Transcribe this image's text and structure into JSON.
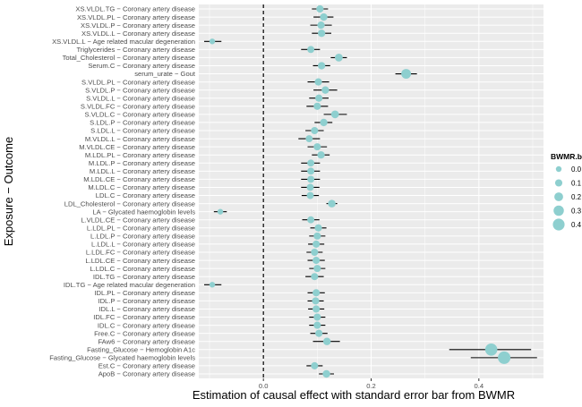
{
  "chart_data": {
    "type": "scatter",
    "title": "",
    "xlabel": "Estimation of causal effect with standard error bar from BWMR",
    "ylabel": "Exposure − Outcome",
    "xlim": [
      -0.12,
      0.52
    ],
    "x_ticks": [
      0.0,
      0.2,
      0.4
    ],
    "x_tick_labels": [
      "0.0",
      "0.2",
      "0.4"
    ],
    "reference_line_x": 0,
    "grid": true,
    "legend": {
      "title": "BWMR.beta",
      "position": "right",
      "entries": [
        {
          "label": "0.0",
          "value": 0.0
        },
        {
          "label": "0.1",
          "value": 0.1
        },
        {
          "label": "0.2",
          "value": 0.2
        },
        {
          "label": "0.3",
          "value": 0.3
        },
        {
          "label": "0.4",
          "value": 0.4
        }
      ]
    },
    "colors": {
      "point": "#8ecfcf",
      "errorbar": "#000000",
      "panel": "#ebebeb",
      "grid": "#ffffff"
    },
    "points": [
      {
        "label": "XS.VLDL.TG  −  Coronary artery disease",
        "beta": 0.105,
        "lo": 0.09,
        "hi": 0.12
      },
      {
        "label": "XS.VLDL.PL  −  Coronary artery disease",
        "beta": 0.112,
        "lo": 0.093,
        "hi": 0.13
      },
      {
        "label": "XS.VLDL.P  −  Coronary artery disease",
        "beta": 0.107,
        "lo": 0.087,
        "hi": 0.127
      },
      {
        "label": "XS.VLDL.L  −  Coronary artery disease",
        "beta": 0.108,
        "lo": 0.09,
        "hi": 0.126
      },
      {
        "label": "XS.VLDL.L  −  Age related macular degeneration",
        "beta": -0.095,
        "lo": -0.11,
        "hi": -0.078
      },
      {
        "label": "Triglycerides  −  Coronary artery disease",
        "beta": 0.088,
        "lo": 0.07,
        "hi": 0.105
      },
      {
        "label": "Total_Cholesterol  −  Coronary artery disease",
        "beta": 0.14,
        "lo": 0.125,
        "hi": 0.155
      },
      {
        "label": "Serum.C  −  Coronary artery disease",
        "beta": 0.108,
        "lo": 0.092,
        "hi": 0.124
      },
      {
        "label": "serum_urate  −  Gout",
        "beta": 0.265,
        "lo": 0.245,
        "hi": 0.285
      },
      {
        "label": "S.VLDL.PL  −  Coronary artery disease",
        "beta": 0.102,
        "lo": 0.082,
        "hi": 0.122
      },
      {
        "label": "S.VLDL.P  −  Coronary artery disease",
        "beta": 0.115,
        "lo": 0.093,
        "hi": 0.137
      },
      {
        "label": "S.VLDL.L  −  Coronary artery disease",
        "beta": 0.103,
        "lo": 0.085,
        "hi": 0.121
      },
      {
        "label": "S.VLDL.FC  −  Coronary artery disease",
        "beta": 0.1,
        "lo": 0.08,
        "hi": 0.12
      },
      {
        "label": "S.VLDL.C  −  Coronary artery disease",
        "beta": 0.133,
        "lo": 0.112,
        "hi": 0.155
      },
      {
        "label": "S.LDL.P  −  Coronary artery disease",
        "beta": 0.112,
        "lo": 0.095,
        "hi": 0.128
      },
      {
        "label": "S.LDL.L  −  Coronary artery disease",
        "beta": 0.095,
        "lo": 0.078,
        "hi": 0.112
      },
      {
        "label": "M.VLDL.L  −  Coronary artery disease",
        "beta": 0.085,
        "lo": 0.065,
        "hi": 0.105
      },
      {
        "label": "M.VLDL.CE  −  Coronary artery disease",
        "beta": 0.1,
        "lo": 0.082,
        "hi": 0.118
      },
      {
        "label": "M.LDL.PL  −  Coronary artery disease",
        "beta": 0.107,
        "lo": 0.09,
        "hi": 0.123
      },
      {
        "label": "M.LDL.P  −  Coronary artery disease",
        "beta": 0.088,
        "lo": 0.07,
        "hi": 0.105
      },
      {
        "label": "M.LDL.L  −  Coronary artery disease",
        "beta": 0.088,
        "lo": 0.07,
        "hi": 0.105
      },
      {
        "label": "M.LDL.CE  −  Coronary artery disease",
        "beta": 0.088,
        "lo": 0.07,
        "hi": 0.105
      },
      {
        "label": "M.LDL.C  −  Coronary artery disease",
        "beta": 0.087,
        "lo": 0.07,
        "hi": 0.104
      },
      {
        "label": "LDL.C  −  Coronary artery disease",
        "beta": 0.087,
        "lo": 0.071,
        "hi": 0.103
      },
      {
        "label": "LDL_Cholesterol  −  Coronary artery disease",
        "beta": 0.127,
        "lo": 0.117,
        "hi": 0.137
      },
      {
        "label": "LA  −  Glycated haemoglobin levels",
        "beta": -0.08,
        "lo": -0.092,
        "hi": -0.068
      },
      {
        "label": "L.VLDL.CE  −  Coronary artery disease",
        "beta": 0.088,
        "lo": 0.072,
        "hi": 0.104
      },
      {
        "label": "L.LDL.PL  −  Coronary artery disease",
        "beta": 0.102,
        "lo": 0.087,
        "hi": 0.117
      },
      {
        "label": "L.LDL.P  −  Coronary artery disease",
        "beta": 0.1,
        "lo": 0.085,
        "hi": 0.115
      },
      {
        "label": "L.LDL.L  −  Coronary artery disease",
        "beta": 0.098,
        "lo": 0.083,
        "hi": 0.113
      },
      {
        "label": "L.LDL.FC  −  Coronary artery disease",
        "beta": 0.095,
        "lo": 0.08,
        "hi": 0.11
      },
      {
        "label": "L.LDL.CE  −  Coronary artery disease",
        "beta": 0.098,
        "lo": 0.082,
        "hi": 0.114
      },
      {
        "label": "L.LDL.C  −  Coronary artery disease",
        "beta": 0.1,
        "lo": 0.085,
        "hi": 0.115
      },
      {
        "label": "IDL.TG  −  Coronary artery disease",
        "beta": 0.095,
        "lo": 0.078,
        "hi": 0.112
      },
      {
        "label": "IDL.TG  −  Age related macular degeneration",
        "beta": -0.095,
        "lo": -0.11,
        "hi": -0.078
      },
      {
        "label": "IDL.PL  −  Coronary artery disease",
        "beta": 0.098,
        "lo": 0.082,
        "hi": 0.114
      },
      {
        "label": "IDL.P  −  Coronary artery disease",
        "beta": 0.097,
        "lo": 0.082,
        "hi": 0.112
      },
      {
        "label": "IDL.L  −  Coronary artery disease",
        "beta": 0.098,
        "lo": 0.083,
        "hi": 0.113
      },
      {
        "label": "IDL.FC  −  Coronary artery disease",
        "beta": 0.1,
        "lo": 0.085,
        "hi": 0.115
      },
      {
        "label": "IDL.C  −  Coronary artery disease",
        "beta": 0.1,
        "lo": 0.085,
        "hi": 0.115
      },
      {
        "label": "Free.C  −  Coronary artery disease",
        "beta": 0.103,
        "lo": 0.087,
        "hi": 0.119
      },
      {
        "label": "FAw6  −  Coronary artery disease",
        "beta": 0.118,
        "lo": 0.092,
        "hi": 0.142
      },
      {
        "label": "Fasting_Glucose  −  Hemoglobin A1c",
        "beta": 0.423,
        "lo": 0.345,
        "hi": 0.497
      },
      {
        "label": "Fasting_Glucose  −  Glycated haemoglobin levels",
        "beta": 0.447,
        "lo": 0.385,
        "hi": 0.508
      },
      {
        "label": "Est.C  −  Coronary artery disease",
        "beta": 0.095,
        "lo": 0.08,
        "hi": 0.11
      },
      {
        "label": "ApoB  −  Coronary artery disease",
        "beta": 0.117,
        "lo": 0.103,
        "hi": 0.131
      }
    ]
  }
}
